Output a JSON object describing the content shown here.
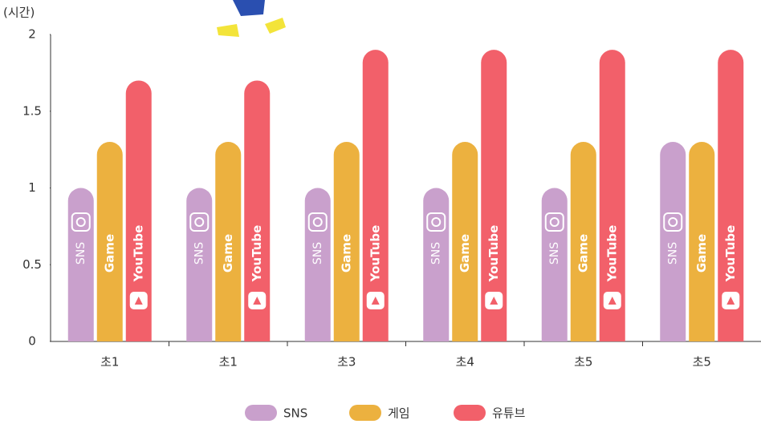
{
  "chart_data": {
    "type": "bar",
    "y_label": "(시간)",
    "categories": [
      "초1",
      "초1",
      "초3",
      "초4",
      "초5",
      "초5"
    ],
    "series": [
      {
        "name": "SNS",
        "color": "#c9a0cc",
        "logo_text": "SNS",
        "values": [
          1,
          1,
          1,
          1,
          1,
          1.3
        ]
      },
      {
        "name": "게임",
        "color": "#ecb13f",
        "logo_text": "Game",
        "values": [
          1.3,
          1.3,
          1.3,
          1.3,
          1.3,
          1.3
        ]
      },
      {
        "name": "유튜브",
        "color": "#f2606a",
        "logo_text": "YouTube",
        "values": [
          1.7,
          1.7,
          1.9,
          1.9,
          1.9,
          1.9
        ]
      }
    ],
    "ylim": [
      0,
      2
    ],
    "yticks": [
      0,
      0.5,
      1,
      1.5,
      2
    ],
    "grid": false
  }
}
